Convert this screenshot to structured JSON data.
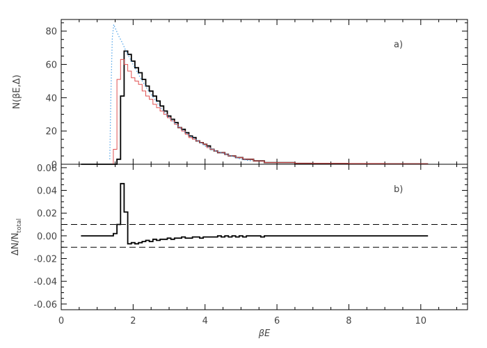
{
  "chart_data": [
    {
      "type": "line",
      "panel_label": "a)",
      "ylabel": "N(βE,Δ)",
      "xlim": [
        0,
        11.3
      ],
      "ylim": [
        0,
        87
      ],
      "yticks": [
        0,
        20,
        40,
        60,
        80
      ],
      "ytick_labels": [
        "0",
        "20",
        "40",
        "60",
        "80"
      ],
      "series": [
        {
          "style": "histogram",
          "color": "#000000",
          "x": [
            0.55,
            1.35,
            1.45,
            1.55,
            1.65,
            1.75,
            1.85,
            1.95,
            2.05,
            2.15,
            2.25,
            2.35,
            2.45,
            2.55,
            2.65,
            2.75,
            2.85,
            2.95,
            3.05,
            3.15,
            3.25,
            3.35,
            3.45,
            3.55,
            3.65,
            3.75,
            3.85,
            3.95,
            4.05,
            4.15,
            4.25,
            4.35,
            4.45,
            4.55,
            4.65,
            4.75,
            4.85,
            4.95,
            5.05,
            5.15,
            5.25,
            5.35,
            5.45,
            5.55,
            5.65,
            5.75,
            5.85,
            5.95,
            6.05,
            6.2,
            6.5,
            7.0,
            8.0,
            9.0,
            10.2
          ],
          "y": [
            0,
            0,
            0,
            3,
            41,
            68,
            66,
            62,
            58,
            55,
            51,
            47,
            44,
            41,
            38,
            35,
            32,
            29,
            27,
            25,
            22,
            21,
            19,
            17,
            16,
            14,
            13,
            12,
            11,
            9,
            8,
            7,
            7,
            6,
            5,
            5,
            4,
            4,
            3,
            3,
            3,
            2,
            2,
            2,
            1,
            1,
            1,
            1,
            1,
            1,
            0.5,
            0.4,
            0.3,
            0.2,
            0.2
          ]
        },
        {
          "style": "histogram",
          "color": "#e05050",
          "x": [
            0.55,
            1.35,
            1.45,
            1.55,
            1.65,
            1.75,
            1.85,
            1.95,
            2.05,
            2.15,
            2.25,
            2.35,
            2.45,
            2.55,
            2.65,
            2.75,
            2.85,
            2.95,
            3.05,
            3.15,
            3.25,
            3.35,
            3.45,
            3.55,
            3.65,
            3.75,
            3.85,
            3.95,
            4.05,
            4.15,
            4.25,
            4.35,
            4.45,
            4.55,
            4.65,
            4.75,
            4.85,
            4.95,
            5.05,
            5.15,
            5.25,
            5.35,
            5.45,
            5.55,
            5.65,
            5.75,
            5.85,
            5.95,
            6.05,
            6.2,
            6.5,
            7.0,
            8.0,
            9.0,
            10.2
          ],
          "y": [
            0,
            0,
            9,
            51,
            63,
            60,
            56,
            52,
            50,
            48,
            44,
            41,
            39,
            36,
            34,
            32,
            30,
            28,
            26,
            24,
            22,
            20,
            18,
            16,
            15,
            14,
            13,
            12,
            10,
            9,
            8,
            7,
            7,
            6,
            5,
            5,
            4,
            4,
            3,
            3,
            3,
            2,
            2,
            2,
            1,
            1,
            1,
            1,
            1,
            1,
            0.6,
            0.5,
            0.4,
            0.3,
            0.3
          ]
        },
        {
          "style": "dotted",
          "color": "#4aa0e8",
          "x": [
            1.35,
            1.38,
            1.42,
            1.46,
            1.5,
            1.6,
            1.7,
            1.8,
            1.9,
            2.0,
            2.2,
            2.4,
            2.6,
            2.8,
            3.0,
            3.2,
            3.4,
            3.6,
            3.8,
            4.0,
            4.3,
            4.6,
            5.0,
            5.3
          ],
          "y": [
            3,
            40,
            76,
            84,
            82,
            77,
            73,
            68,
            64,
            60,
            52,
            45,
            39,
            33,
            28,
            24,
            20,
            17,
            14,
            11,
            8,
            6,
            3,
            2
          ]
        }
      ]
    },
    {
      "type": "line",
      "panel_label": "b)",
      "xlabel": "βE",
      "ylabel_main": "ΔN/N",
      "ylabel_sub": "total",
      "xlim": [
        0,
        11.3
      ],
      "ylim": [
        -0.065,
        0.063
      ],
      "xticks": [
        0,
        2,
        4,
        6,
        8,
        10
      ],
      "xtick_labels": [
        "0",
        "2",
        "4",
        "6",
        "8",
        "10"
      ],
      "yticks": [
        -0.06,
        -0.04,
        -0.02,
        0.0,
        0.02,
        0.04,
        0.06
      ],
      "ytick_labels": [
        "-0.06",
        "-0.04",
        "-0.02",
        "0.00",
        "0.02",
        "0.04",
        "0.06"
      ],
      "reference_lines": [
        0.01,
        -0.01
      ],
      "series": [
        {
          "style": "histogram",
          "color": "#000000",
          "x": [
            0.55,
            1.35,
            1.45,
            1.55,
            1.65,
            1.75,
            1.85,
            1.95,
            2.05,
            2.15,
            2.25,
            2.35,
            2.45,
            2.55,
            2.65,
            2.75,
            2.85,
            2.95,
            3.05,
            3.15,
            3.25,
            3.35,
            3.45,
            3.55,
            3.65,
            3.75,
            3.85,
            3.95,
            4.05,
            4.15,
            4.25,
            4.35,
            4.45,
            4.55,
            4.65,
            4.75,
            4.85,
            4.95,
            5.05,
            5.15,
            5.25,
            5.35,
            5.45,
            5.55,
            5.65,
            5.75,
            5.85,
            5.95,
            6.05,
            6.2,
            6.5,
            7.0,
            8.0,
            9.0,
            10.2
          ],
          "y": [
            0,
            0,
            0.002,
            0.01,
            0.046,
            0.021,
            -0.007,
            -0.006,
            -0.007,
            -0.006,
            -0.005,
            -0.004,
            -0.005,
            -0.003,
            -0.004,
            -0.003,
            -0.003,
            -0.002,
            -0.003,
            -0.002,
            -0.002,
            -0.001,
            -0.002,
            -0.002,
            -0.001,
            -0.001,
            -0.002,
            -0.001,
            -0.001,
            -0.001,
            -0.001,
            0,
            -0.001,
            0,
            -0.001,
            0,
            -0.001,
            0,
            -0.001,
            0,
            0,
            0,
            0,
            -0.001,
            0,
            0,
            0,
            0,
            0,
            0,
            0,
            0,
            0,
            0,
            0
          ]
        }
      ]
    }
  ]
}
